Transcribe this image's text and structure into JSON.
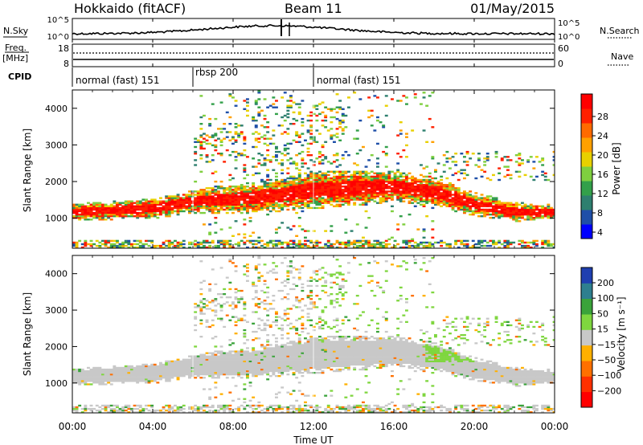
{
  "header": {
    "station": "Hokkaido (fitACF)",
    "beam": "Beam 11",
    "date": "01/May/2015"
  },
  "nsky_panel": {
    "left_label": "N.Sky",
    "right_label": "N.Search",
    "ticks": [
      "10^5",
      "10^0"
    ]
  },
  "freq_panel": {
    "left_label_top": "Freq.",
    "left_label_bottom": "[MHz]",
    "left_ticks": [
      "18",
      "8"
    ],
    "right_label": "Nave",
    "right_ticks": [
      "60",
      "0"
    ]
  },
  "cpid": {
    "label": "CPID",
    "segments": [
      {
        "label": "normal (fast) 151",
        "start_hour": 0,
        "end_hour": 6
      },
      {
        "label": "rbsp 200",
        "start_hour": 6,
        "end_hour": 12
      },
      {
        "label": "normal (fast) 151",
        "start_hour": 12,
        "end_hour": 24
      }
    ]
  },
  "time_axis": {
    "label": "Time UT",
    "ticks": [
      "00:00",
      "04:00",
      "08:00",
      "12:00",
      "16:00",
      "20:00",
      "00:00"
    ]
  },
  "chart_data": [
    {
      "type": "heatmap",
      "ylabel": "Slant Range [km]",
      "xlim": [
        0,
        24
      ],
      "ylim": [
        180,
        4500
      ],
      "yticks": [
        1000,
        2000,
        3000,
        4000
      ],
      "colorbar": {
        "label": "Power [dB]",
        "ticks": [
          "28",
          "24",
          "20",
          "16",
          "12",
          "8",
          "4"
        ],
        "colors": [
          "#0000ff",
          "#1f4fa8",
          "#2e7f6f",
          "#33a04a",
          "#7fcf3f",
          "#e8d000",
          "#ffa000",
          "#ff6a00",
          "#ff2000",
          "#ff0000"
        ]
      },
      "main_band_center_km": [
        [
          0,
          1150
        ],
        [
          2,
          1200
        ],
        [
          4,
          1250
        ],
        [
          6,
          1450
        ],
        [
          8,
          1500
        ],
        [
          10,
          1600
        ],
        [
          12,
          1750
        ],
        [
          14,
          1800
        ],
        [
          16,
          1850
        ],
        [
          18,
          1700
        ],
        [
          20,
          1350
        ],
        [
          22,
          1150
        ],
        [
          24,
          1150
        ]
      ]
    },
    {
      "type": "heatmap",
      "ylabel": "Slant Range [km]",
      "xlim": [
        0,
        24
      ],
      "ylim": [
        180,
        4500
      ],
      "yticks": [
        1000,
        2000,
        3000,
        4000
      ],
      "colorbar": {
        "label": "Velocity [m s⁻¹]",
        "ticks": [
          "200",
          "100",
          "50",
          "15",
          "−15",
          "−50",
          "−100",
          "−200"
        ],
        "colors": [
          "#ff0000",
          "#ff3000",
          "#ff7000",
          "#ffb000",
          "#c8c8c8",
          "#7fd63f",
          "#3aa33a",
          "#2e7f8f",
          "#1f3fb0"
        ]
      }
    }
  ]
}
